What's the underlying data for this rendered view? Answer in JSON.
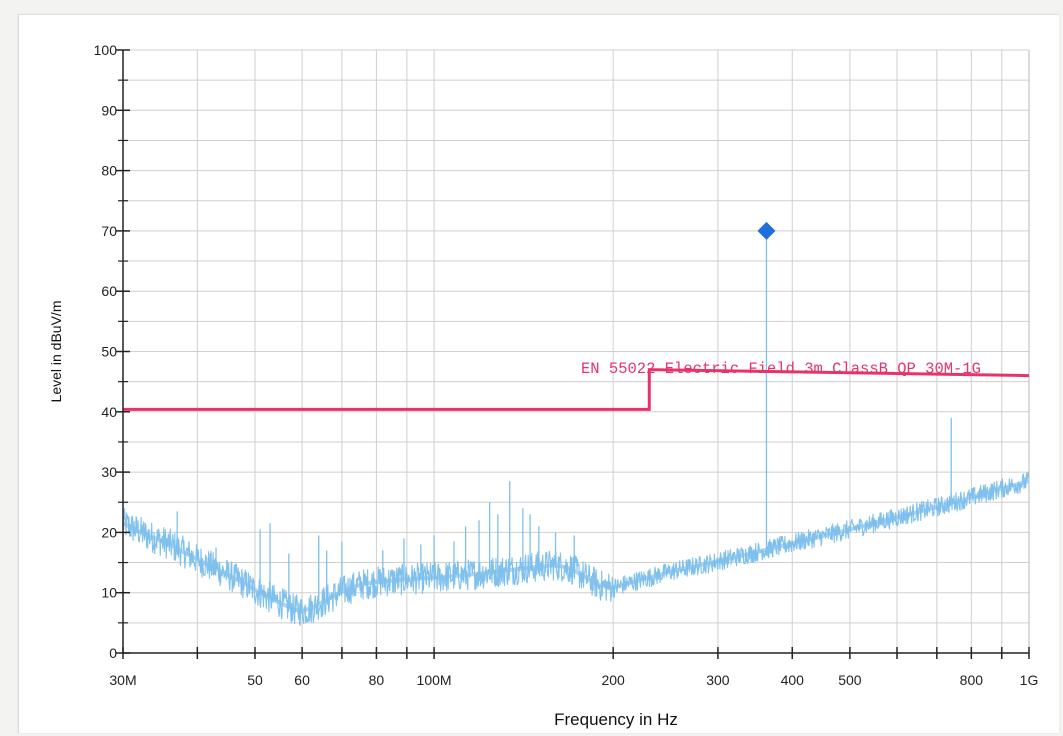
{
  "chart_data": {
    "type": "line",
    "xlabel": "Frequency in Hz",
    "ylabel": "Level in dBuV/m",
    "x_scale": "log",
    "xlim": [
      30000000,
      1000000000
    ],
    "ylim": [
      0,
      100
    ],
    "grid": true,
    "x_ticks": [
      {
        "value": 30000000,
        "label": "30M"
      },
      {
        "value": 50000000,
        "label": "50"
      },
      {
        "value": 60000000,
        "label": "60"
      },
      {
        "value": 80000000,
        "label": "80"
      },
      {
        "value": 100000000,
        "label": "100M"
      },
      {
        "value": 200000000,
        "label": "200"
      },
      {
        "value": 300000000,
        "label": "300"
      },
      {
        "value": 400000000,
        "label": "400"
      },
      {
        "value": 500000000,
        "label": "500"
      },
      {
        "value": 800000000,
        "label": "800"
      },
      {
        "value": 1000000000,
        "label": "1G"
      }
    ],
    "y_ticks": [
      0,
      10,
      20,
      30,
      40,
      50,
      60,
      70,
      80,
      90,
      100
    ],
    "limit_line": {
      "label": "EN 55022 Electric Field 3m ClassB QP 30M-1G",
      "color": "#e8336a",
      "segments": [
        {
          "x": [
            30000000,
            230000000
          ],
          "y": [
            40.4,
            40.4
          ]
        },
        {
          "x": [
            230000000,
            1000000000
          ],
          "y": [
            47.0,
            46.0
          ]
        }
      ]
    },
    "series": [
      {
        "color": "#7fc0ec",
        "x": [
          30000000,
          33000000,
          36000000,
          40000000,
          44000000,
          48000000,
          52000000,
          56000000,
          58000000,
          60000000,
          62000000,
          66000000,
          70000000,
          75000000,
          80000000,
          90000000,
          100000000,
          110000000,
          120000000,
          130000000,
          140000000,
          150000000,
          160000000,
          170000000,
          180000000,
          190000000,
          200000000,
          220000000,
          250000000,
          300000000,
          350000000,
          400000000,
          500000000,
          600000000,
          700000000,
          800000000,
          900000000,
          1000000000
        ],
        "values": [
          21.5,
          19.5,
          18.0,
          15.5,
          13.5,
          11.5,
          9.5,
          8.0,
          7.2,
          7.0,
          7.4,
          8.8,
          10.2,
          11.3,
          11.8,
          12.2,
          12.5,
          12.8,
          13.2,
          13.6,
          14.0,
          14.3,
          14.6,
          14.0,
          12.5,
          11.2,
          10.8,
          12.0,
          13.5,
          15.2,
          16.8,
          18.2,
          20.5,
          22.5,
          24.2,
          25.8,
          27.3,
          28.5
        ]
      },
      {
        "type": "scatter",
        "color": "#1f6fdc",
        "x": [
          362000000
        ],
        "values": [
          70.0
        ]
      }
    ],
    "spikes": [
      {
        "x": 362000000,
        "y": 70.0
      },
      {
        "x": 740000000,
        "y": 39.0
      },
      {
        "x": 134000000,
        "y": 28.5
      },
      {
        "x": 124000000,
        "y": 25.0
      },
      {
        "x": 141000000,
        "y": 24.0
      },
      {
        "x": 37000000,
        "y": 23.5
      },
      {
        "x": 53000000,
        "y": 21.5
      },
      {
        "x": 51000000,
        "y": 20.5
      },
      {
        "x": 64000000,
        "y": 19.5
      },
      {
        "x": 89000000,
        "y": 19.0
      },
      {
        "x": 100000000,
        "y": 19.5
      },
      {
        "x": 113000000,
        "y": 21.0
      },
      {
        "x": 119000000,
        "y": 22.0
      },
      {
        "x": 128000000,
        "y": 23.0
      },
      {
        "x": 145000000,
        "y": 23.0
      },
      {
        "x": 150000000,
        "y": 21.0
      },
      {
        "x": 70000000,
        "y": 18.5
      },
      {
        "x": 95000000,
        "y": 18.0
      },
      {
        "x": 108000000,
        "y": 18.5
      },
      {
        "x": 160000000,
        "y": 20.0
      },
      {
        "x": 43000000,
        "y": 17.5
      },
      {
        "x": 57000000,
        "y": 16.5
      },
      {
        "x": 66000000,
        "y": 17.0
      },
      {
        "x": 82000000,
        "y": 17.0
      },
      {
        "x": 172000000,
        "y": 19.5
      }
    ]
  }
}
